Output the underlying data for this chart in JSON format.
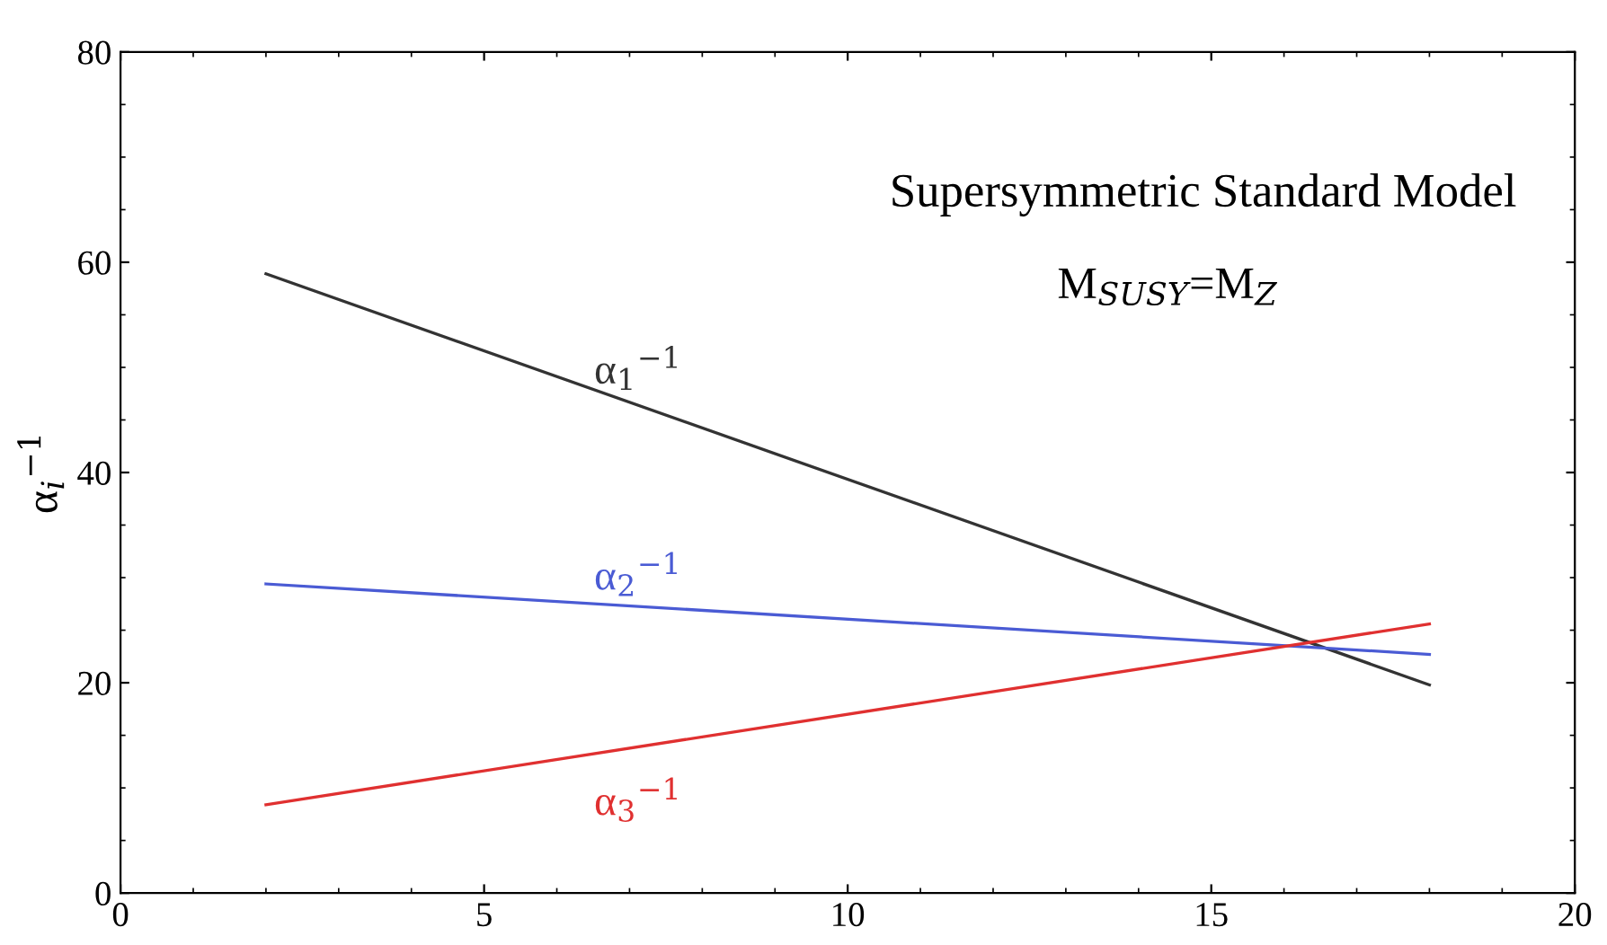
{
  "chart_data": {
    "type": "line",
    "title": "Supersymmetric Standard Model",
    "subtitle": "M$_{SUSY}$=M$_{Z}$",
    "ylabel": "α$_{i}$$^{−1}$",
    "x": [
      2,
      18
    ],
    "series": [
      {
        "name": "α$_{1}$$^{−1}$",
        "color": "#333333",
        "values": [
          58.9,
          19.8
        ]
      },
      {
        "name": "α$_{2}$$^{−1}$",
        "color": "#4a5bd4",
        "values": [
          29.4,
          22.7
        ]
      },
      {
        "name": "α$_{3}$$^{−1}$",
        "color": "#e03030",
        "values": [
          8.4,
          25.6
        ]
      }
    ],
    "xlim": [
      0,
      20
    ],
    "xticks": [
      0,
      5,
      10,
      15,
      20
    ],
    "ylim": [
      0,
      80
    ],
    "yticks": [
      0,
      20,
      40,
      60,
      80
    ],
    "grid": false,
    "legend": false,
    "marker": "none",
    "line_style": "solid"
  }
}
